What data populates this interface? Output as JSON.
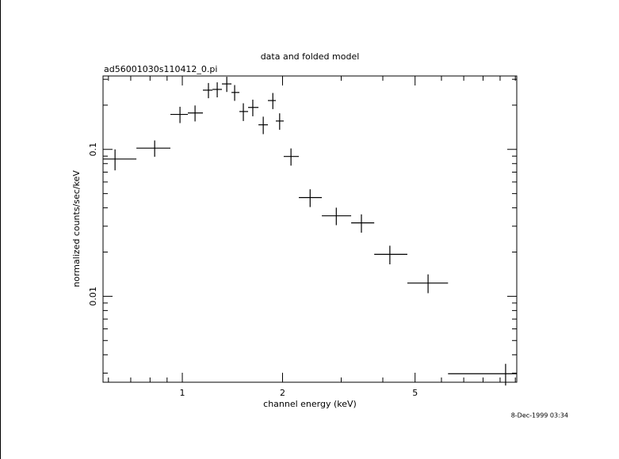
{
  "chart_data": {
    "type": "scatter",
    "title": "data and folded model",
    "subtitle": "ad56001030s110412_0.pi",
    "x_label": "channel energy (keV)",
    "y_label": "normalized counts/sec/keV",
    "timestamp": "8-Dec-1999 03:34",
    "x_scale": "log",
    "y_scale": "log",
    "xlim": [
      0.578,
      10.1
    ],
    "ylim": [
      0.0026,
      0.316
    ],
    "xticks": [
      1,
      2,
      5
    ],
    "x_minor_ticks": [
      0.6,
      0.7,
      0.8,
      0.9,
      3,
      4,
      6,
      7,
      8,
      9,
      10
    ],
    "yticks": [
      0.01,
      0.1
    ],
    "y_minor_ticks": [
      0.003,
      0.004,
      0.005,
      0.006,
      0.007,
      0.008,
      0.009,
      0.02,
      0.03,
      0.04,
      0.05,
      0.06,
      0.07,
      0.08,
      0.09,
      0.2,
      0.3
    ],
    "color": "#000000",
    "x": [
      0.628,
      0.826,
      0.984,
      1.092,
      1.198,
      1.273,
      1.36,
      1.436,
      1.525,
      1.628,
      1.75,
      1.87,
      1.96,
      2.12,
      2.42,
      2.9,
      3.45,
      4.2,
      5.47,
      9.35
    ],
    "x_edges": [
      0.578,
      0.728,
      0.921,
      1.039,
      1.153,
      1.232,
      1.315,
      1.405,
      1.484,
      1.576,
      1.693,
      1.807,
      1.909,
      2.016,
      2.238,
      2.624,
      3.214,
      3.77,
      4.74,
      6.28,
      10.1
    ],
    "values": [
      0.086,
      0.102,
      0.173,
      0.177,
      0.253,
      0.256,
      0.279,
      0.244,
      0.181,
      0.193,
      0.147,
      0.215,
      0.156,
      0.0895,
      0.047,
      0.0353,
      0.0316,
      0.0193,
      0.0123,
      0.00297
    ],
    "y_err": [
      0.014,
      0.013,
      0.022,
      0.022,
      0.03,
      0.03,
      0.033,
      0.03,
      0.025,
      0.025,
      0.02,
      0.027,
      0.02,
      0.012,
      0.0065,
      0.0048,
      0.0045,
      0.0028,
      0.0018,
      0.0005
    ]
  }
}
